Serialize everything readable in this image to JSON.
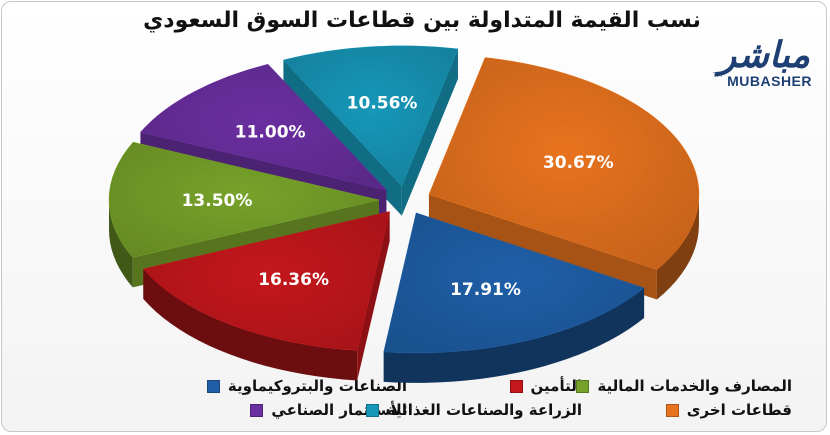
{
  "title": "نسب القيمة المتداولة بين قطاعات السوق السعودي",
  "logo": {
    "arabic": "مباشر",
    "english": "MUBASHER",
    "tm": "TM"
  },
  "chart_data": {
    "type": "pie",
    "title": "نسب القيمة المتداولة بين قطاعات السوق السعودي",
    "legend_position": "bottom",
    "slices": [
      {
        "name": "قطاعات اخرى",
        "value": 30.67,
        "label": "30.67%",
        "color": "#e8731e"
      },
      {
        "name": "الصناعات والبتروكيماوية",
        "value": 17.91,
        "label": "17.91%",
        "color": "#1f5fa8"
      },
      {
        "name": "التأمين",
        "value": 16.36,
        "label": "16.36%",
        "color": "#c4171c"
      },
      {
        "name": "المصارف والخدمات المالية",
        "value": 13.5,
        "label": "13.50%",
        "color": "#77a22a"
      },
      {
        "name": "الأستثمار الصناعي",
        "value": 11.0,
        "label": "11.00%",
        "color": "#6a2fa0"
      },
      {
        "name": "الزراعة والصناعات الغذائية",
        "value": 10.56,
        "label": "10.56%",
        "color": "#1797b8"
      }
    ]
  },
  "legend": [
    {
      "label": "الصناعات والبتروكيماوية",
      "color": "#1f5fa8"
    },
    {
      "label": "التأمين",
      "color": "#c4171c"
    },
    {
      "label": "المصارف والخدمات المالية",
      "color": "#77a22a"
    },
    {
      "label": "الأستثمار الصناعي",
      "color": "#6a2fa0"
    },
    {
      "label": "الزراعة والصناعات الغذائية",
      "color": "#1797b8"
    },
    {
      "label": "قطاعات اخرى",
      "color": "#e8731e"
    }
  ]
}
